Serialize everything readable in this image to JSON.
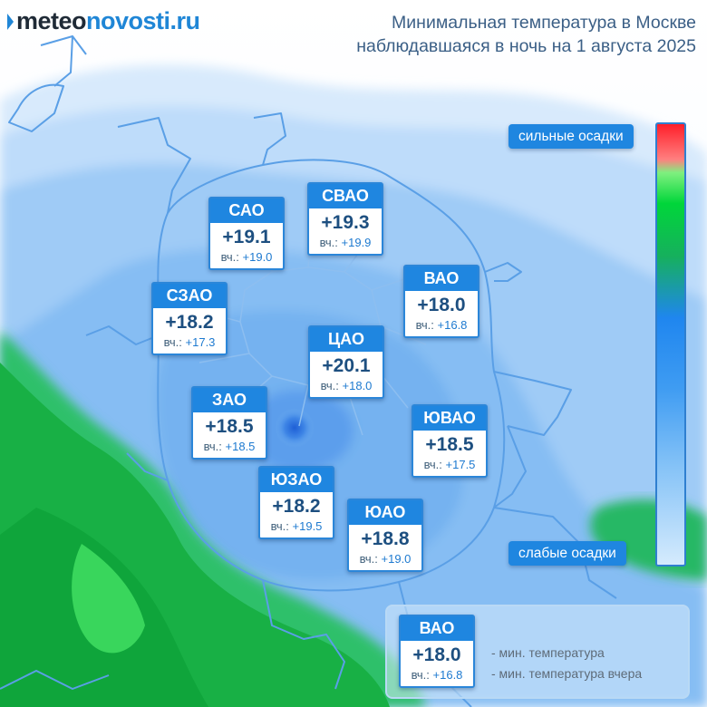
{
  "header": {
    "logo_part1": "meteo",
    "logo_part2": "novosti.ru",
    "title_line1": "Минимальная температура в Москве",
    "title_line2": "наблюдавшаяся в ночь на 1 августа 2025"
  },
  "districts": [
    {
      "code": "САО",
      "temp": "+19.1",
      "yesterday_label": "вч.:",
      "yesterday": "+19.0"
    },
    {
      "code": "СВАО",
      "temp": "+19.3",
      "yesterday_label": "вч.:",
      "yesterday": "+19.9"
    },
    {
      "code": "ВАО",
      "temp": "+18.0",
      "yesterday_label": "вч.:",
      "yesterday": "+16.8"
    },
    {
      "code": "СЗАО",
      "temp": "+18.2",
      "yesterday_label": "вч.:",
      "yesterday": "+17.3"
    },
    {
      "code": "ЦАО",
      "temp": "+20.1",
      "yesterday_label": "вч.:",
      "yesterday": "+18.0"
    },
    {
      "code": "ЗАО",
      "temp": "+18.5",
      "yesterday_label": "вч.:",
      "yesterday": "+18.5"
    },
    {
      "code": "ЮВАО",
      "temp": "+18.5",
      "yesterday_label": "вч.:",
      "yesterday": "+17.5"
    },
    {
      "code": "ЮЗАО",
      "temp": "+18.2",
      "yesterday_label": "вч.:",
      "yesterday": "+19.5"
    },
    {
      "code": "ЮАО",
      "temp": "+18.8",
      "yesterday_label": "вч.:",
      "yesterday": "+19.0"
    }
  ],
  "precip_scale": {
    "top_label": "сильные осадки",
    "bottom_label": "слабые осадки",
    "colors": [
      "#ff1f2a",
      "#00d63a",
      "#1f86ef",
      "#d5ebfd"
    ]
  },
  "legend": {
    "code": "ВАО",
    "temp": "+18.0",
    "yesterday_label": "вч.:",
    "yesterday": "+16.8",
    "desc_min": "- мин. температура",
    "desc_yesterday": "- мин. температура вчера"
  }
}
